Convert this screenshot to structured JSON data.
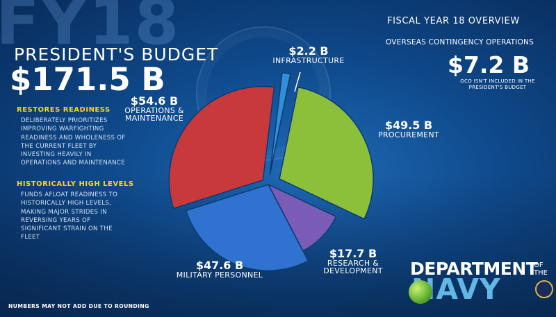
{
  "background_text": "FY18",
  "budget": {
    "label": "PRESIDENT'S BUDGET",
    "total": "$171.5 B"
  },
  "readiness": {
    "heading": "RESTORES READINESS",
    "body": "DELIBERATELY PRIORITIZES IMPROVING WARFIGHTING READINESS AND WHOLENESS OF THE CURRENT FLEET BY INVESTING HEAVILY IN OPERATIONS AND MAINTENANCE"
  },
  "high_levels": {
    "heading": "HISTORICALLY HIGH LEVELS",
    "body": "FUNDS AFLOAT READINESS TO HISTORICALLY HIGH LEVELS, MAKING MAJOR STRIDES IN REVERSING YEARS OF SIGNIFICANT STRAIN ON THE FLEET"
  },
  "overview": {
    "title": "FISCAL YEAR 18 OVERVIEW",
    "oco_label": "OVERSEAS CONTINGENCY OPERATIONS",
    "oco_value": "$7.2 B",
    "oco_note": "OCO ISN'T INCLUDED IN THE PRESIDENT'S BUDGET"
  },
  "footnote": "NUMBERS MAY NOT ADD DUE TO ROUNDING",
  "logo": {
    "line1": "DEPARTMENT",
    "of_the": "OF THE",
    "navy": "NAVY"
  },
  "chart_data": {
    "type": "pie",
    "title": "",
    "total": 171.5,
    "unit": "$B",
    "slices": [
      {
        "key": "infra",
        "label": "INFRASTRUCTURE",
        "value": 2.2,
        "display": "$2.2 B",
        "color": "#2f8fd8"
      },
      {
        "key": "proc",
        "label": "PROCUREMENT",
        "value": 49.5,
        "display": "$49.5 B",
        "color": "#8cbf3a"
      },
      {
        "key": "rdte",
        "label": "RESEARCH & DEVELOPMENT",
        "value": 17.7,
        "display": "$17.7 B",
        "color": "#7a5bb5"
      },
      {
        "key": "milpers",
        "label": "MILITARY PERSONNEL",
        "value": 47.6,
        "display": "$47.6 B",
        "color": "#2f72cf"
      },
      {
        "key": "om",
        "label": "OPERATIONS & MAINTENANCE",
        "value": 54.6,
        "display": "$54.6 B",
        "color": "#c8393c"
      }
    ]
  }
}
